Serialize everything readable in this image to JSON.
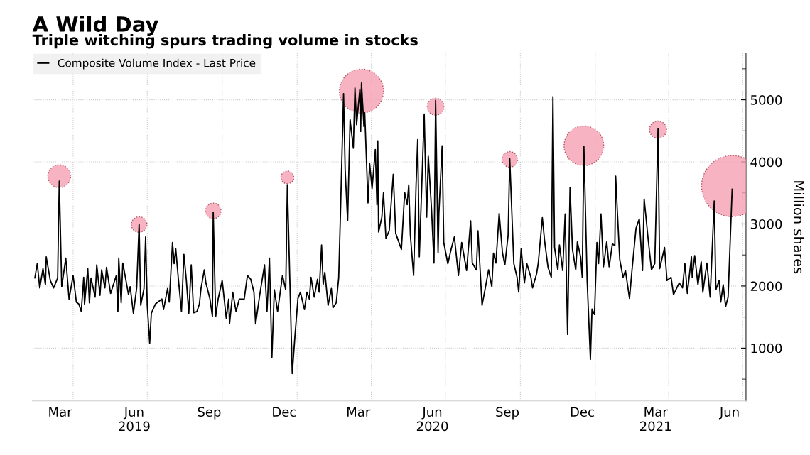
{
  "chart_data": {
    "type": "line",
    "title": "A Wild Day",
    "subtitle": "Triple witching spurs trading volume in stocks",
    "ylabel": "Million shares",
    "xlim": [
      "2019-02-10",
      "2021-07-05"
    ],
    "xticks": [
      {
        "value": "2019-03-16",
        "label": "Mar"
      },
      {
        "value": "2019-04-01",
        "label": null
      },
      {
        "value": "2019-06-15",
        "label": "Jun\n2019"
      },
      {
        "value": "2019-07-01",
        "label": null
      },
      {
        "value": "2019-09-15",
        "label": "Sep"
      },
      {
        "value": "2019-10-01",
        "label": null
      },
      {
        "value": "2019-12-16",
        "label": "Dec"
      },
      {
        "value": "2020-01-01",
        "label": null
      },
      {
        "value": "2020-03-16",
        "label": "Mar"
      },
      {
        "value": "2020-04-01",
        "label": null
      },
      {
        "value": "2020-06-15",
        "label": "Jun\n2020"
      },
      {
        "value": "2020-07-01",
        "label": null
      },
      {
        "value": "2020-09-15",
        "label": "Sep"
      },
      {
        "value": "2020-10-01",
        "label": null
      },
      {
        "value": "2020-12-16",
        "label": "Dec"
      },
      {
        "value": "2021-01-01",
        "label": null
      },
      {
        "value": "2021-03-16",
        "label": "Mar\n2021"
      },
      {
        "value": "2021-04-01",
        "label": null
      },
      {
        "value": "2021-06-15",
        "label": "Jun"
      },
      {
        "value": "2021-07-01",
        "label": null
      }
    ],
    "ylim": [
      150,
      5750
    ],
    "yticks": [
      {
        "value": 500,
        "label": null
      },
      1000,
      {
        "value": 1500,
        "label": null
      },
      2000,
      {
        "value": 2500,
        "label": null
      },
      3000,
      {
        "value": 3500,
        "label": null
      },
      4000,
      {
        "value": 4500,
        "label": null
      },
      5000,
      {
        "value": 5500,
        "label": null
      }
    ],
    "grid": true,
    "legend": "top left",
    "line_style": "solid",
    "series": [
      {
        "name": "Composite Volume Index - Last Price",
        "color": "#000000",
        "x": [
          "2019-02-13",
          "2019-02-16",
          "2019-02-19",
          "2019-02-23",
          "2019-02-26",
          "2019-02-27",
          "2019-03-04",
          "2019-03-08",
          "2019-03-13",
          "2019-03-15",
          "2019-03-18",
          "2019-03-23",
          "2019-03-27",
          "2019-04-01",
          "2019-04-05",
          "2019-04-08",
          "2019-04-11",
          "2019-04-14",
          "2019-04-15",
          "2019-04-19",
          "2019-04-21",
          "2019-04-23",
          "2019-04-28",
          "2019-04-30",
          "2019-05-04",
          "2019-05-06",
          "2019-05-10",
          "2019-05-12",
          "2019-05-17",
          "2019-05-24",
          "2019-05-26",
          "2019-05-27",
          "2019-05-30",
          "2019-06-01",
          "2019-06-08",
          "2019-06-10",
          "2019-06-14",
          "2019-06-18",
          "2019-06-21",
          "2019-06-23",
          "2019-06-27",
          "2019-06-29",
          "2019-07-01",
          "2019-07-04",
          "2019-07-06",
          "2019-07-11",
          "2019-07-19",
          "2019-07-21",
          "2019-07-26",
          "2019-07-28",
          "2019-08-01",
          "2019-08-03",
          "2019-08-05",
          "2019-08-08",
          "2019-08-12",
          "2019-08-15",
          "2019-08-18",
          "2019-08-21",
          "2019-08-24",
          "2019-08-27",
          "2019-08-31",
          "2019-09-03",
          "2019-09-05",
          "2019-09-09",
          "2019-09-11",
          "2019-09-16",
          "2019-09-19",
          "2019-09-20",
          "2019-09-23",
          "2019-09-26",
          "2019-10-01",
          "2019-10-06",
          "2019-10-09",
          "2019-10-10",
          "2019-10-14",
          "2019-10-18",
          "2019-10-22",
          "2019-10-28",
          "2019-11-01",
          "2019-11-05",
          "2019-11-09",
          "2019-11-11",
          "2019-11-16",
          "2019-11-22",
          "2019-11-25",
          "2019-11-28",
          "2019-12-01",
          "2019-12-04",
          "2019-12-08",
          "2019-12-14",
          "2019-12-18",
          "2019-12-20",
          "2019-12-26",
          "2019-12-29",
          "2020-01-02",
          "2020-01-05",
          "2020-01-10",
          "2020-01-13",
          "2020-01-16",
          "2020-01-18",
          "2020-01-22",
          "2020-01-26",
          "2020-01-28",
          "2020-01-31",
          "2020-02-02",
          "2020-02-04",
          "2020-02-08",
          "2020-02-12",
          "2020-02-14",
          "2020-02-18",
          "2020-02-21",
          "2020-02-23",
          "2020-02-27",
          "2020-02-29",
          "2020-03-03",
          "2020-03-06",
          "2020-03-10",
          "2020-03-12",
          "2020-03-14",
          "2020-03-18",
          "2020-03-19",
          "2020-03-20",
          "2020-03-23",
          "2020-03-24",
          "2020-03-28",
          "2020-03-30",
          "2020-04-02",
          "2020-04-06",
          "2020-04-08",
          "2020-04-09",
          "2020-04-10",
          "2020-04-14",
          "2020-04-16",
          "2020-04-19",
          "2020-04-23",
          "2020-04-28",
          "2020-05-01",
          "2020-05-08",
          "2020-05-12",
          "2020-05-15",
          "2020-05-17",
          "2020-05-19",
          "2020-05-23",
          "2020-05-26",
          "2020-05-28",
          "2020-05-30",
          "2020-06-05",
          "2020-06-08",
          "2020-06-10",
          "2020-06-14",
          "2020-06-17",
          "2020-06-19",
          "2020-06-22",
          "2020-06-23",
          "2020-06-27",
          "2020-06-29",
          "2020-07-04",
          "2020-07-08",
          "2020-07-12",
          "2020-07-17",
          "2020-07-21",
          "2020-07-27",
          "2020-08-01",
          "2020-08-03",
          "2020-08-08",
          "2020-08-10",
          "2020-08-15",
          "2020-08-19",
          "2020-08-23",
          "2020-08-27",
          "2020-08-29",
          "2020-09-01",
          "2020-09-05",
          "2020-09-09",
          "2020-09-12",
          "2020-09-16",
          "2020-09-18",
          "2020-09-23",
          "2020-09-27",
          "2020-09-29",
          "2020-10-02",
          "2020-10-06",
          "2020-10-09",
          "2020-10-14",
          "2020-10-16",
          "2020-10-21",
          "2020-10-23",
          "2020-10-28",
          "2020-10-31",
          "2020-11-04",
          "2020-11-08",
          "2020-11-10",
          "2020-11-12",
          "2020-11-16",
          "2020-11-18",
          "2020-11-22",
          "2020-11-25",
          "2020-11-28",
          "2020-12-01",
          "2020-12-04",
          "2020-12-08",
          "2020-12-10",
          "2020-12-14",
          "2020-12-16",
          "2020-12-18",
          "2020-12-22",
          "2020-12-26",
          "2020-12-28",
          "2020-12-31",
          "2021-01-03",
          "2021-01-05",
          "2021-01-08",
          "2021-01-11",
          "2021-01-15",
          "2021-01-18",
          "2021-01-22",
          "2021-01-25",
          "2021-01-26",
          "2021-01-28",
          "2021-01-31",
          "2021-02-04",
          "2021-02-07",
          "2021-02-12",
          "2021-02-15",
          "2021-02-20",
          "2021-02-24",
          "2021-02-28",
          "2021-03-02",
          "2021-03-07",
          "2021-03-11",
          "2021-03-15",
          "2021-03-19",
          "2021-03-21",
          "2021-03-27",
          "2021-03-30",
          "2021-04-04",
          "2021-04-07",
          "2021-04-14",
          "2021-04-18",
          "2021-04-21",
          "2021-04-24",
          "2021-04-29",
          "2021-04-30",
          "2021-05-03",
          "2021-05-07",
          "2021-05-11",
          "2021-05-13",
          "2021-05-18",
          "2021-05-22",
          "2021-05-27",
          "2021-05-29",
          "2021-06-02",
          "2021-06-04",
          "2021-06-07",
          "2021-06-10",
          "2021-06-13",
          "2021-06-18"
        ],
        "values": [
          2130,
          2360,
          1970,
          2280,
          2020,
          2470,
          2090,
          1970,
          2130,
          3690,
          1990,
          2450,
          1790,
          2170,
          1740,
          1710,
          1590,
          2140,
          1710,
          2280,
          1730,
          2130,
          1820,
          2340,
          1850,
          2260,
          1970,
          2300,
          1880,
          2170,
          1590,
          2450,
          1730,
          2370,
          1860,
          1990,
          1560,
          1970,
          2990,
          1690,
          1960,
          2790,
          1690,
          1080,
          1560,
          1710,
          1790,
          1620,
          1960,
          1740,
          2700,
          2360,
          2600,
          2140,
          1590,
          2510,
          2090,
          1560,
          2340,
          1570,
          1590,
          1710,
          1960,
          2260,
          2050,
          1790,
          1510,
          3190,
          1510,
          1790,
          2090,
          1480,
          1790,
          1390,
          1900,
          1590,
          1790,
          1790,
          2170,
          2110,
          1900,
          1390,
          1850,
          2340,
          1590,
          2450,
          850,
          1940,
          1590,
          2170,
          1940,
          3630,
          590,
          1140,
          1800,
          1900,
          1620,
          1900,
          1790,
          2140,
          1820,
          2110,
          1900,
          2660,
          2030,
          2220,
          1690,
          1960,
          1650,
          1730,
          2130,
          3080,
          5100,
          3850,
          3050,
          4680,
          4220,
          5190,
          4600,
          5170,
          4490,
          5270,
          4570,
          4790,
          3340,
          3970,
          3570,
          4200,
          3310,
          4340,
          2870,
          3110,
          3500,
          2770,
          2890,
          3800,
          2850,
          2590,
          3510,
          3310,
          3630,
          2820,
          2170,
          3630,
          4360,
          2470,
          4770,
          3110,
          4090,
          3230,
          2370,
          4990,
          2540,
          3170,
          4260,
          2700,
          2360,
          2590,
          2790,
          2170,
          2700,
          2250,
          3050,
          2370,
          2260,
          2890,
          1690,
          1970,
          2260,
          1990,
          2530,
          2370,
          3170,
          2540,
          2340,
          2820,
          4050,
          2360,
          2140,
          1900,
          2600,
          2050,
          2360,
          2140,
          1970,
          2200,
          2370,
          3100,
          2700,
          2300,
          2140,
          5050,
          2620,
          2260,
          2660,
          2250,
          3160,
          1220,
          3590,
          2590,
          2260,
          2710,
          2470,
          2140,
          4250,
          2090,
          820,
          1630,
          1540,
          2700,
          2360,
          3160,
          2310,
          2710,
          2310,
          2680,
          2650,
          3770,
          3220,
          2430,
          2140,
          2250,
          1800,
          2250,
          2930,
          3080,
          2250,
          3400,
          2740,
          2260,
          2360,
          4530,
          2280,
          2620,
          2090,
          2140,
          1860,
          2050,
          1970,
          2360,
          1880,
          2470,
          2140,
          2490,
          2020,
          2390,
          1900,
          2370,
          1820,
          3370,
          1940,
          2090,
          1740,
          2020,
          1670,
          1820,
          3560
        ]
      },
      {
        "type": "bubble",
        "color": "#f5a0b2",
        "x": [
          "2019-03-15",
          "2019-06-21",
          "2019-09-20",
          "2019-12-20",
          "2020-03-20",
          "2020-06-19",
          "2020-09-18",
          "2020-12-18",
          "2021-03-19",
          "2021-06-18"
        ],
        "values": [
          3770,
          2990,
          3210,
          3750,
          5140,
          4890,
          4040,
          4260,
          4520,
          3610
        ],
        "sizes": [
          0.14,
          0.065,
          0.065,
          0.044,
          0.52,
          0.078,
          0.065,
          0.42,
          0.078,
          1
        ]
      }
    ]
  }
}
